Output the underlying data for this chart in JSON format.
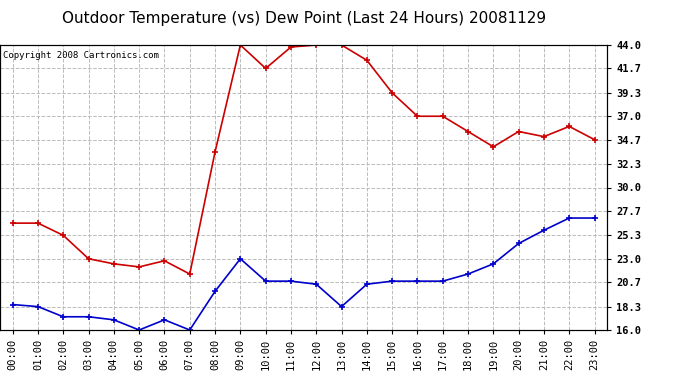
{
  "title": "Outdoor Temperature (vs) Dew Point (Last 24 Hours) 20081129",
  "copyright": "Copyright 2008 Cartronics.com",
  "hours": [
    "00:00",
    "01:00",
    "02:00",
    "03:00",
    "04:00",
    "05:00",
    "06:00",
    "07:00",
    "08:00",
    "09:00",
    "10:00",
    "11:00",
    "12:00",
    "13:00",
    "14:00",
    "15:00",
    "16:00",
    "17:00",
    "18:00",
    "19:00",
    "20:00",
    "21:00",
    "22:00",
    "23:00"
  ],
  "temp": [
    26.5,
    26.5,
    25.3,
    23.0,
    22.5,
    22.2,
    22.8,
    21.5,
    33.5,
    44.0,
    41.7,
    43.8,
    44.0,
    44.0,
    42.5,
    39.3,
    37.0,
    37.0,
    35.5,
    34.0,
    35.5,
    35.0,
    36.0,
    34.7
  ],
  "dew": [
    18.5,
    18.3,
    17.3,
    17.3,
    17.0,
    16.0,
    17.0,
    16.0,
    19.8,
    23.0,
    20.8,
    20.8,
    20.5,
    18.3,
    20.5,
    20.8,
    20.8,
    20.8,
    21.5,
    22.5,
    24.5,
    25.8,
    27.0,
    27.0
  ],
  "temp_color": "#cc0000",
  "dew_color": "#0000cc",
  "bg_color": "#ffffff",
  "plot_bg_color": "#ffffff",
  "grid_color": "#bbbbbb",
  "ylim": [
    16.0,
    44.0
  ],
  "yticks": [
    16.0,
    18.3,
    20.7,
    23.0,
    25.3,
    27.7,
    30.0,
    32.3,
    34.7,
    37.0,
    39.3,
    41.7,
    44.0
  ],
  "title_fontsize": 11,
  "copyright_fontsize": 6.5,
  "tick_fontsize": 7.5
}
